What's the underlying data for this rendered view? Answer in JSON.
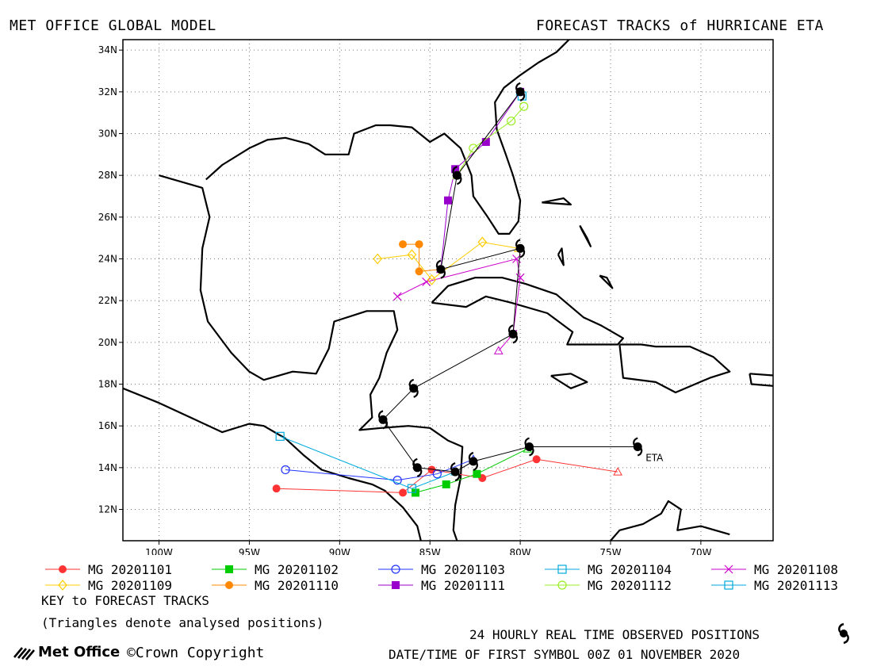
{
  "header": {
    "left_title": "MET OFFICE GLOBAL MODEL",
    "right_title": "FORECAST TRACKS of HURRICANE ETA"
  },
  "map": {
    "lon_range": [
      -102,
      -66
    ],
    "lat_range": [
      10.5,
      34.5
    ],
    "lat_ticks": [
      "12N",
      "14N",
      "16N",
      "18N",
      "20N",
      "22N",
      "24N",
      "26N",
      "28N",
      "30N",
      "32N",
      "34N"
    ],
    "lon_ticks": [
      "100W",
      "95W",
      "90W",
      "85W",
      "80W",
      "75W",
      "70W"
    ],
    "storm_label": "ETA",
    "grid": "dotted"
  },
  "observed_track": [
    [
      -73.5,
      15.0
    ],
    [
      -79.5,
      15.0
    ],
    [
      -82.6,
      14.3
    ],
    [
      -83.6,
      13.8
    ],
    [
      -85.7,
      14.0
    ],
    [
      -87.6,
      16.3
    ],
    [
      -85.9,
      17.8
    ],
    [
      -80.4,
      20.4
    ],
    [
      -80.0,
      24.5
    ],
    [
      -84.4,
      23.5
    ],
    [
      -83.5,
      28.0
    ],
    [
      -80.0,
      32.0
    ]
  ],
  "forecast_tracks": [
    {
      "name": "MG 20201101",
      "color": "#ff3333",
      "marker": "filled-circle",
      "points": [
        [
          -74.6,
          13.8
        ],
        [
          -79.1,
          14.4
        ],
        [
          -82.1,
          13.5
        ],
        [
          -84.9,
          13.9
        ],
        [
          -86.5,
          12.8
        ],
        [
          -93.5,
          13.0
        ]
      ]
    },
    {
      "name": "MG 20201102",
      "color": "#00cc00",
      "marker": "filled-square",
      "points": [
        [
          -79.6,
          14.9
        ],
        [
          -82.4,
          13.7
        ],
        [
          -84.1,
          13.2
        ],
        [
          -85.8,
          12.8
        ]
      ]
    },
    {
      "name": "MG 20201103",
      "color": "#2233ff",
      "marker": "open-circle",
      "points": [
        [
          -82.6,
          14.4
        ],
        [
          -84.6,
          13.7
        ],
        [
          -86.8,
          13.4
        ],
        [
          -93.0,
          13.9
        ]
      ]
    },
    {
      "name": "MG 20201104",
      "color": "#00aadd",
      "marker": "open-square",
      "points": [
        [
          -83.6,
          13.8
        ],
        [
          -86.0,
          13.0
        ],
        [
          -93.3,
          15.5
        ]
      ]
    },
    {
      "name": "MG 20201108",
      "color": "#cc00cc",
      "marker": "x",
      "points": [
        [
          -81.2,
          19.6
        ],
        [
          -80.4,
          20.4
        ],
        [
          -80.0,
          23.1
        ],
        [
          -80.2,
          24.0
        ],
        [
          -85.2,
          22.9
        ],
        [
          -86.8,
          22.2
        ]
      ]
    },
    {
      "name": "MG 20201109",
      "color": "#ffcc00",
      "marker": "open-diamond",
      "points": [
        [
          -80.1,
          24.5
        ],
        [
          -82.1,
          24.8
        ],
        [
          -84.9,
          23.0
        ],
        [
          -86.0,
          24.2
        ],
        [
          -87.9,
          24.0
        ]
      ]
    },
    {
      "name": "MG 20201110",
      "color": "#ff8800",
      "marker": "filled-circle",
      "points": [
        [
          -84.4,
          23.5
        ],
        [
          -85.6,
          23.4
        ],
        [
          -85.6,
          24.7
        ],
        [
          -86.5,
          24.7
        ]
      ]
    },
    {
      "name": "MG 20201111",
      "color": "#9900cc",
      "marker": "filled-square",
      "points": [
        [
          -84.4,
          23.5
        ],
        [
          -84.0,
          26.8
        ],
        [
          -83.6,
          28.3
        ],
        [
          -81.9,
          29.6
        ],
        [
          -80.0,
          32.0
        ]
      ]
    },
    {
      "name": "MG 20201112",
      "color": "#99ee22",
      "marker": "open-circle",
      "points": [
        [
          -83.5,
          28.0
        ],
        [
          -82.6,
          29.3
        ],
        [
          -80.5,
          30.6
        ],
        [
          -79.8,
          31.3
        ]
      ]
    },
    {
      "name": "MG 20201113",
      "color": "#00aadd",
      "marker": "open-square",
      "points": [
        [
          -80.0,
          32.0
        ],
        [
          -79.9,
          31.8
        ]
      ]
    }
  ],
  "legend": {
    "items": [
      {
        "name": "MG 20201101",
        "color": "#ff3333",
        "marker": "filled-circle"
      },
      {
        "name": "MG 20201102",
        "color": "#00cc00",
        "marker": "filled-square"
      },
      {
        "name": "MG 20201103",
        "color": "#2233ff",
        "marker": "open-circle"
      },
      {
        "name": "MG 20201104",
        "color": "#00aadd",
        "marker": "open-square"
      },
      {
        "name": "MG 20201108",
        "color": "#cc00cc",
        "marker": "x"
      },
      {
        "name": "MG 20201109",
        "color": "#ffcc00",
        "marker": "open-diamond"
      },
      {
        "name": "MG 20201110",
        "color": "#ff8800",
        "marker": "filled-circle"
      },
      {
        "name": "MG 20201111",
        "color": "#9900cc",
        "marker": "filled-square"
      },
      {
        "name": "MG 20201112",
        "color": "#99ee22",
        "marker": "open-circle"
      },
      {
        "name": "MG 20201113",
        "color": "#00aadd",
        "marker": "open-square"
      }
    ]
  },
  "notes": {
    "key": "KEY to FORECAST TRACKS",
    "triangles": "(Triangles denote analysed positions)",
    "observed": "24 HOURLY REAL TIME OBSERVED POSITIONS",
    "datetime": "DATE/TIME OF FIRST SYMBOL 00Z 01 NOVEMBER 2020"
  },
  "branding": {
    "logo_text": "Met Office",
    "copyright": "Crown Copyright",
    "copyright_symbol": "©"
  },
  "icons": {
    "observed_symbol": "hurricane-symbol-icon",
    "logo": "met-office-logo-icon"
  }
}
